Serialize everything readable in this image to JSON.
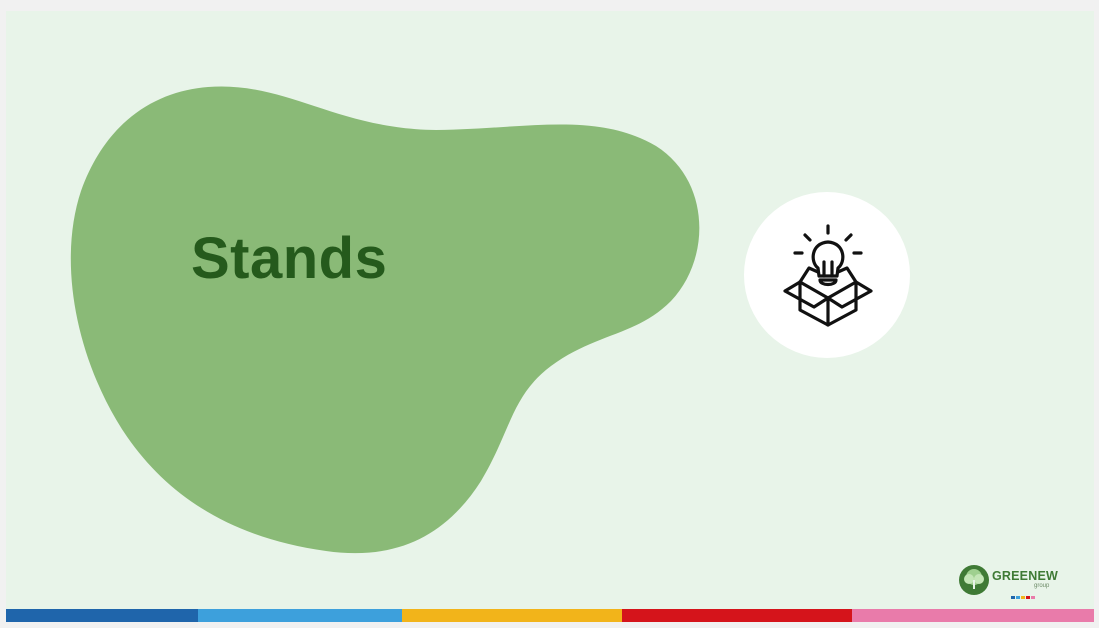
{
  "slide": {
    "title": "Stands",
    "title_color": "#255a1c",
    "background_color": "#e8f4e9",
    "blob_color": "#8aba77",
    "icon": "lightbulb-in-open-box-icon"
  },
  "logo": {
    "word": "GREENEW",
    "sub": "group",
    "color": "#3f7a35",
    "emblem": "tree-icon"
  },
  "bottom_stripe": {
    "colors": [
      "#1f65ab",
      "#3da0dc",
      "#f2b41a",
      "#d5141b",
      "#e97baa"
    ]
  }
}
